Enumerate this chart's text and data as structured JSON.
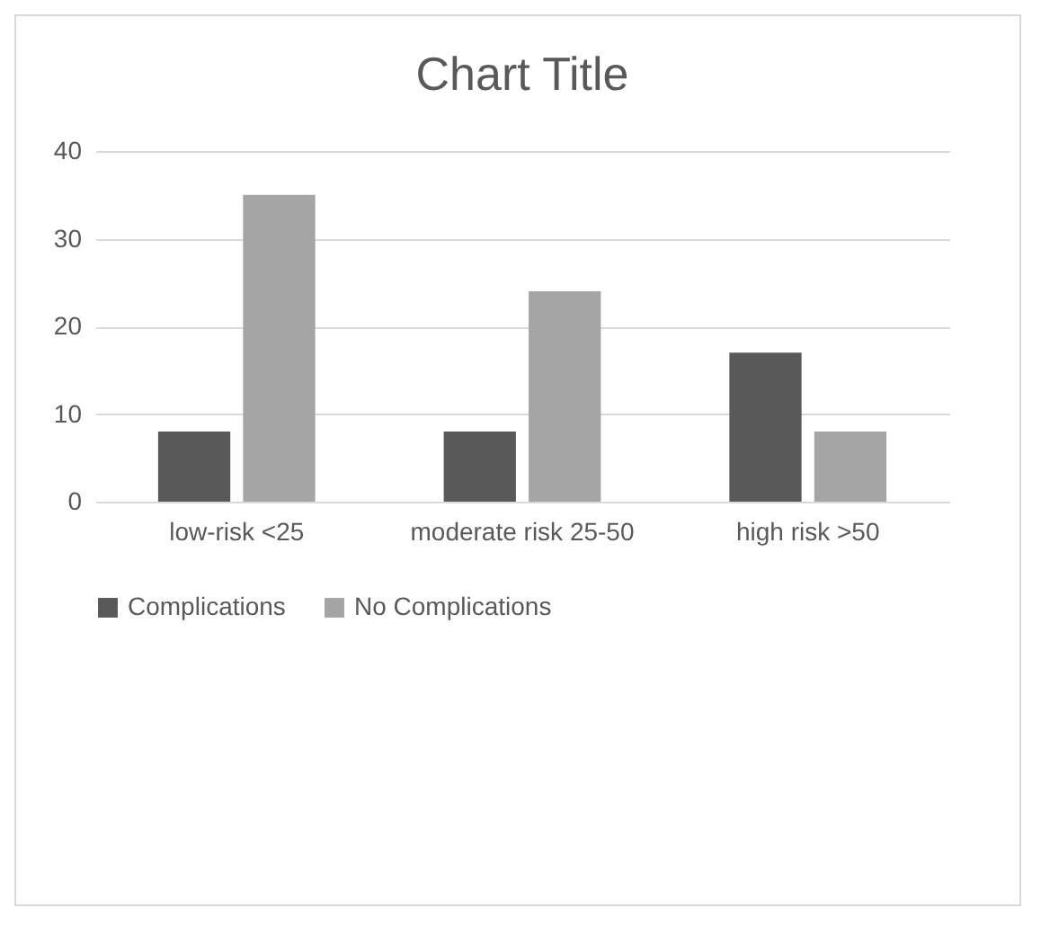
{
  "chart_data": {
    "type": "bar",
    "title": "Chart Title",
    "categories": [
      "low-risk <25",
      "moderate risk 25-50",
      "high risk >50"
    ],
    "series": [
      {
        "name": "Complications",
        "color": "#595959",
        "values": [
          8,
          8,
          17
        ]
      },
      {
        "name": "No Complications",
        "color": "#a5a5a5",
        "values": [
          35,
          24,
          8
        ]
      }
    ],
    "ylim": [
      0,
      40
    ],
    "yticks": [
      0,
      10,
      20,
      30,
      40
    ],
    "grid": "y",
    "legend": "bottom"
  }
}
